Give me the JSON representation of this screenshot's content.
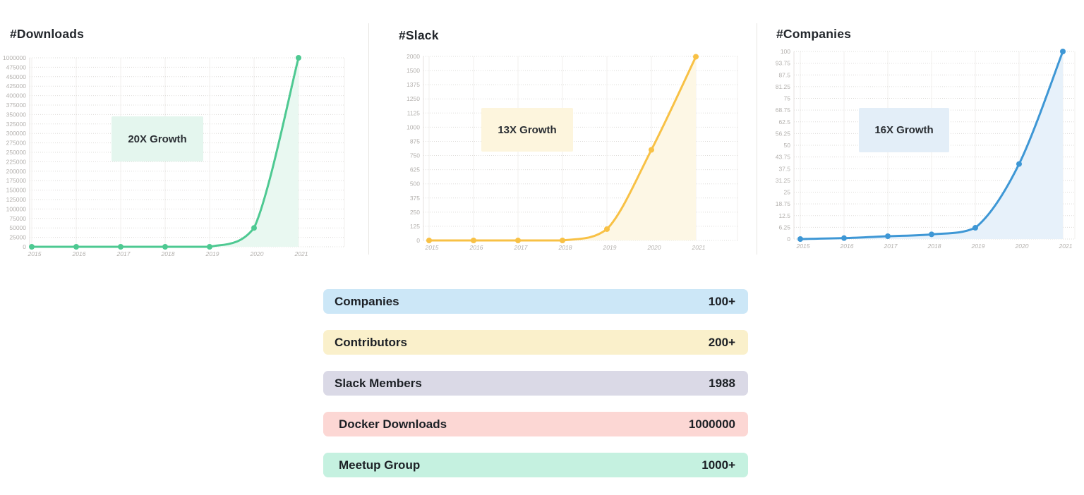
{
  "chart_data": [
    {
      "type": "line",
      "title": "#Downloads",
      "annotation": "20X Growth",
      "x": [
        "2015",
        "2016",
        "2017",
        "2018",
        "2019",
        "2020",
        "2021"
      ],
      "values": [
        0,
        0,
        0,
        0,
        0,
        50000,
        1000000
      ],
      "y_ticks": [
        0,
        25000,
        50000,
        75000,
        100000,
        125000,
        150000,
        175000,
        200000,
        225000,
        250000,
        275000,
        300000,
        325000,
        350000,
        375000,
        400000,
        425000,
        450000,
        475000,
        1000000
      ],
      "ylim": [
        0,
        1000000
      ],
      "grid": true,
      "legend": "none",
      "line_color": "#4ec992",
      "area_fill": "#e9f8f1",
      "annotation_bg": "#e4f6ee"
    },
    {
      "type": "line",
      "title": "#Slack",
      "annotation": "13X Growth",
      "x": [
        "2015",
        "2016",
        "2017",
        "2018",
        "2019",
        "2020",
        "2021"
      ],
      "values": [
        0,
        0,
        0,
        0,
        100,
        800,
        1988
      ],
      "y_ticks": [
        0,
        125,
        250,
        375,
        500,
        625,
        750,
        875,
        1000,
        1125,
        1250,
        1375,
        1500,
        2000
      ],
      "ylim": [
        0,
        2000
      ],
      "grid": true,
      "legend": "none",
      "line_color": "#f8c145",
      "area_fill": "#fdf7e5",
      "annotation_bg": "#fdf5dd"
    },
    {
      "type": "line",
      "title": "#Companies",
      "annotation": "16X Growth",
      "x": [
        "2015",
        "2016",
        "2017",
        "2018",
        "2019",
        "2020",
        "2021"
      ],
      "values": [
        0,
        0.5,
        1.5,
        2.5,
        6,
        40,
        100
      ],
      "y_ticks": [
        0,
        6.25,
        12.5,
        18.75,
        25,
        31.25,
        37.5,
        43.75,
        50,
        56.25,
        62.5,
        68.75,
        75,
        81.25,
        87.5,
        93.75,
        100
      ],
      "ylim": [
        0,
        100
      ],
      "grid": true,
      "legend": "none",
      "line_color": "#3e97d5",
      "area_fill": "#e7f1fa",
      "annotation_bg": "#e3eef8"
    }
  ],
  "stats": {
    "rows": [
      {
        "label": "Companies",
        "value": "100+",
        "color": "#cce7f7"
      },
      {
        "label": "Contributors",
        "value": "200+",
        "color": "#faf0cb"
      },
      {
        "label": "Slack Members",
        "value": "1988",
        "color": "#dad9e6"
      },
      {
        "label": "Docker Downloads",
        "value": "1000000",
        "color": "#fcd7d4"
      },
      {
        "label": "Meetup Group",
        "value": "1000+",
        "color": "#c5f1e0"
      }
    ]
  },
  "theme": {
    "tick_label_color": "#b3b0ad",
    "grid_dotted_color": "#dedcd9",
    "grid_vertical_color": "#f1efec",
    "axis_line_color": "#e4e2df"
  }
}
